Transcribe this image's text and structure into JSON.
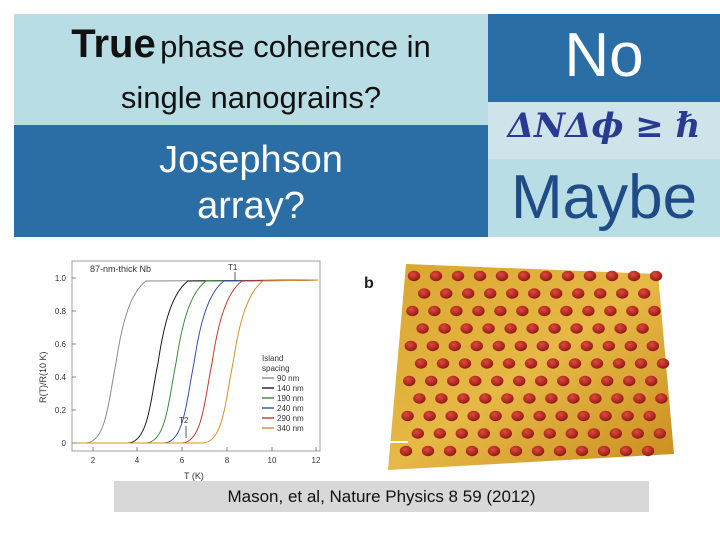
{
  "question1": {
    "word_true": "True",
    "line1_rest": "phase coherence in",
    "line2": "single nanograins?"
  },
  "question2": {
    "line1": "Josephson",
    "line2": "array?"
  },
  "answer1": "No",
  "formula": "ΔNΔϕ ≥ ℏ",
  "answer2": "Maybe",
  "plot": {
    "header": "87-nm-thick Nb",
    "ylabel": "R(T)/R(10 K)",
    "xlabel": "T (K)",
    "x_ticks": [
      "2",
      "4",
      "6",
      "8",
      "10",
      "12"
    ],
    "y_ticks": [
      "1.0",
      "0.8",
      "0.6",
      "0.4",
      "0.2",
      "0"
    ],
    "t1_label": "T1",
    "t2_label": "T2",
    "legend_title_line1": "Island",
    "legend_title_line2": "spacing",
    "legend": [
      {
        "label": "90 nm",
        "color": "#8a8a8a"
      },
      {
        "label": "140 nm",
        "color": "#1a1a1a"
      },
      {
        "label": "190 nm",
        "color": "#3a8a3a"
      },
      {
        "label": "240 nm",
        "color": "#3050b0"
      },
      {
        "label": "290 nm",
        "color": "#c0392b"
      },
      {
        "label": "340 nm",
        "color": "#d4902a"
      }
    ]
  },
  "afm": {
    "panel_label": "b"
  },
  "caption": "Mason, et al, Nature Physics 8 59 (2012)"
}
